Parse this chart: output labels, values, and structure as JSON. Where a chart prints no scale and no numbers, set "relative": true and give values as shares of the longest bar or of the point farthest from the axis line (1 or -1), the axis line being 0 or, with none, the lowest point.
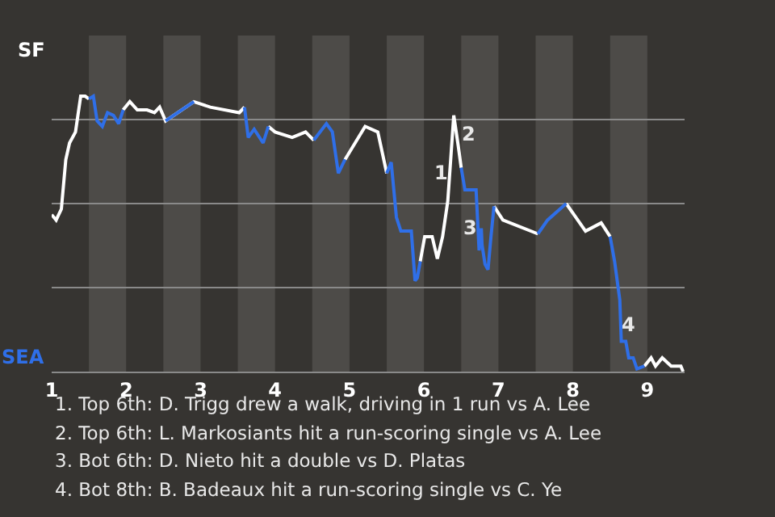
{
  "chart_data": {
    "type": "line",
    "relative": true,
    "x": [
      1.0,
      1.06,
      1.13,
      1.19,
      1.24,
      1.32,
      1.39,
      1.45,
      1.5,
      1.56,
      1.61,
      1.68,
      1.75,
      1.83,
      1.9,
      1.96,
      2.05,
      2.15,
      2.28,
      2.38,
      2.45,
      2.53,
      2.91,
      3.13,
      3.52,
      3.59,
      3.64,
      3.72,
      3.84,
      3.91,
      4.0,
      4.23,
      4.41,
      4.52,
      4.69,
      4.77,
      4.85,
      4.94,
      5.21,
      5.38,
      5.5,
      5.56,
      5.63,
      5.69,
      5.83,
      5.88,
      5.91,
      5.95,
      6.01,
      6.11,
      6.18,
      6.25,
      6.32,
      6.4,
      6.46,
      6.5,
      6.55,
      6.7,
      6.74,
      6.77,
      6.78,
      6.82,
      6.86,
      6.9,
      6.94,
      7.06,
      7.53,
      7.66,
      7.91,
      8.17,
      8.38,
      8.5,
      8.56,
      8.63,
      8.65,
      8.71,
      8.75,
      8.81,
      8.86,
      8.96,
      9.05,
      9.11,
      9.2,
      9.32,
      9.45,
      9.48
    ],
    "series": [
      {
        "color": "#ffffff",
        "values": [
          0.57,
          0.55,
          0.59,
          0.77,
          0.83,
          0.87,
          1.0,
          1.0,
          0.99,
          null,
          null,
          null,
          null,
          null,
          null,
          0.95,
          0.98,
          0.95,
          0.95,
          0.94,
          0.96,
          0.91,
          0.98,
          0.96,
          0.94,
          0.96,
          null,
          null,
          null,
          0.89,
          0.87,
          0.85,
          0.87,
          0.84,
          null,
          null,
          null,
          0.77,
          0.89,
          0.87,
          0.72,
          null,
          null,
          null,
          null,
          null,
          null,
          0.4,
          0.49,
          0.49,
          0.41,
          0.49,
          0.62,
          0.93,
          0.82,
          0.74,
          null,
          null,
          null,
          null,
          null,
          null,
          null,
          null,
          0.6,
          0.55,
          0.5,
          null,
          0.61,
          0.51,
          0.54,
          0.49,
          null,
          null,
          null,
          null,
          null,
          null,
          null,
          0.02,
          0.05,
          0.02,
          0.05,
          0.02,
          0.02,
          0.0
        ]
      },
      {
        "color": "#2f6fe8",
        "values": [
          null,
          null,
          null,
          null,
          null,
          null,
          null,
          null,
          0.99,
          1.0,
          0.91,
          0.89,
          0.94,
          0.93,
          0.9,
          0.95,
          null,
          null,
          null,
          null,
          null,
          0.91,
          0.98,
          null,
          null,
          0.96,
          0.85,
          0.88,
          0.83,
          0.89,
          null,
          null,
          null,
          0.84,
          0.9,
          0.87,
          0.72,
          0.77,
          null,
          null,
          0.72,
          0.76,
          0.56,
          0.51,
          0.51,
          0.33,
          0.34,
          0.4,
          null,
          null,
          null,
          null,
          null,
          null,
          null,
          0.74,
          0.66,
          0.66,
          0.44,
          0.52,
          0.46,
          0.39,
          0.37,
          0.49,
          0.6,
          null,
          0.5,
          0.55,
          0.61,
          null,
          null,
          0.49,
          0.4,
          0.26,
          0.11,
          0.11,
          0.05,
          0.05,
          0.01,
          0.02,
          null,
          null,
          null,
          null,
          null,
          null
        ]
      }
    ],
    "xlim": [
      1,
      9.5
    ],
    "xticks": [
      1,
      2,
      3,
      4,
      5,
      6,
      7,
      8,
      9
    ],
    "grid": "y",
    "marker": "none",
    "line_style": "solid",
    "bands": [
      {
        "axis": "x",
        "from": 1.5,
        "to": 2,
        "color": "#4d4b48"
      },
      {
        "axis": "x",
        "from": 2.5,
        "to": 3,
        "color": "#4d4b48"
      },
      {
        "axis": "x",
        "from": 3.5,
        "to": 4,
        "color": "#4d4b48"
      },
      {
        "axis": "x",
        "from": 4.5,
        "to": 5,
        "color": "#4d4b48"
      },
      {
        "axis": "x",
        "from": 5.5,
        "to": 6,
        "color": "#4d4b48"
      },
      {
        "axis": "x",
        "from": 6.5,
        "to": 7,
        "color": "#4d4b48"
      },
      {
        "axis": "x",
        "from": 7.5,
        "to": 8,
        "color": "#4d4b48"
      },
      {
        "axis": "x",
        "from": 8.5,
        "to": 9,
        "color": "#4d4b48"
      }
    ],
    "annotations": [
      {
        "text": "1",
        "x": 6.22,
        "y": 0.72
      },
      {
        "text": "2",
        "x": 6.6,
        "y": 0.86
      },
      {
        "text": "3",
        "x": 6.62,
        "y": 0.52
      },
      {
        "text": "4",
        "x": 8.74,
        "y": 0.17
      },
      "SF",
      "SEA",
      "1. Top 6th: D. Trigg drew a walk, driving in 1 run vs A. Lee",
      "2. Top 6th: L. Markosiants hit a run-scoring single vs A. Lee",
      "3. Bot 6th: D. Nieto hit a double vs D. Platas",
      "4. Bot 8th: B. Badeaux hit a run-scoring single vs C. Ye"
    ]
  }
}
